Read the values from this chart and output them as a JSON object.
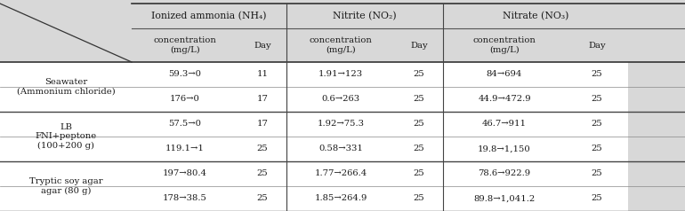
{
  "header_row1": [
    "",
    "Ionized ammonia (NH₄)",
    "Nitrite (NO₂)",
    "Nitrate (NO₃)"
  ],
  "header_row2_labels": [
    "concentration\n(mg/L)",
    "Day",
    "concentration\n(mg/L)",
    "Day",
    "concentration\n(mg/L)",
    "Day"
  ],
  "row_groups": [
    {
      "label": "Seawater\n(Ammonium chloride)",
      "rows": [
        [
          "59.3→0",
          "11",
          "1.91→123",
          "25",
          "84→694",
          "25"
        ],
        [
          "176→0",
          "17",
          "0.6→263",
          "25",
          "44.9→472.9",
          "25"
        ]
      ]
    },
    {
      "label": "LB\nFNI+peptone\n(100+200 g)",
      "rows": [
        [
          "57.5→0",
          "17",
          "1.92→75.3",
          "25",
          "46.7→911",
          "25"
        ],
        [
          "119.1→1",
          "25",
          "0.58→331",
          "25",
          "19.8→1,150",
          "25"
        ]
      ]
    },
    {
      "label": "Tryptic soy agar\nagar (80 g)",
      "rows": [
        [
          "197→80.4",
          "25",
          "1.77→266.4",
          "25",
          "78.6→922.9",
          "25"
        ],
        [
          "178→38.5",
          "25",
          "1.85→264.9",
          "25",
          "89.8→1,041.2",
          "25"
        ]
      ]
    }
  ],
  "bg_color": "#d8d8d8",
  "body_bg": "#ffffff",
  "font_size": 7.2,
  "header_font_size": 7.8
}
